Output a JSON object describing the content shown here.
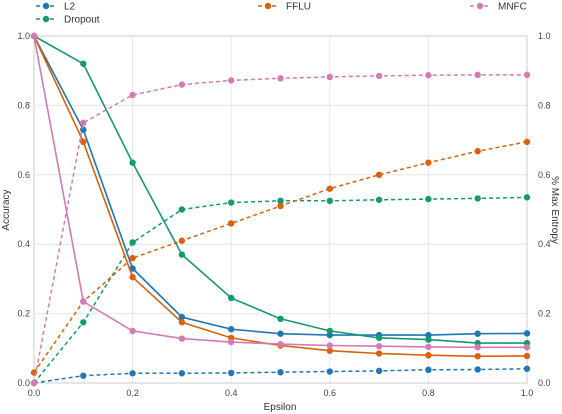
{
  "chart_data": {
    "type": "line",
    "xlabel": "Epsilon",
    "ylabel_left": "Accuracy",
    "ylabel_right": "% Max Entropy",
    "xlim": [
      0,
      1
    ],
    "ylim_left": [
      0,
      1
    ],
    "ylim_right": [
      0,
      1
    ],
    "grid": true,
    "legend_placement": "top",
    "x": [
      0.0,
      0.1,
      0.2,
      0.3,
      0.4,
      0.5,
      0.6,
      0.7,
      0.8,
      0.9,
      1.0
    ],
    "xticks": [
      "0.0",
      "0.2",
      "0.4",
      "0.6",
      "0.8",
      "1.0"
    ],
    "yticks": [
      "0.0",
      "0.2",
      "0.4",
      "0.6",
      "0.8",
      "1.0"
    ],
    "series": [
      {
        "name": "L2",
        "color": "#1f77b4",
        "accuracy": [
          1.0,
          0.73,
          0.33,
          0.19,
          0.155,
          0.142,
          0.138,
          0.138,
          0.138,
          0.142,
          0.143
        ],
        "entropy": [
          0.0,
          0.021,
          0.028,
          0.028,
          0.029,
          0.031,
          0.033,
          0.035,
          0.038,
          0.039,
          0.041
        ]
      },
      {
        "name": "Dropout",
        "color": "#129b6e",
        "accuracy": [
          1.0,
          0.92,
          0.635,
          0.37,
          0.245,
          0.185,
          0.15,
          0.13,
          0.125,
          0.115,
          0.115
        ],
        "entropy": [
          0.0,
          0.175,
          0.405,
          0.5,
          0.52,
          0.525,
          0.525,
          0.528,
          0.53,
          0.532,
          0.535
        ]
      },
      {
        "name": "FFLU",
        "color": "#d9620b",
        "accuracy": [
          1.0,
          0.695,
          0.305,
          0.175,
          0.13,
          0.108,
          0.093,
          0.085,
          0.08,
          0.077,
          0.078
        ],
        "entropy": [
          0.03,
          0.235,
          0.36,
          0.41,
          0.46,
          0.51,
          0.56,
          0.6,
          0.635,
          0.668,
          0.695
        ]
      },
      {
        "name": "MNFC",
        "color": "#d47ab4",
        "accuracy": [
          1.0,
          0.235,
          0.15,
          0.128,
          0.118,
          0.112,
          0.108,
          0.106,
          0.104,
          0.103,
          0.103
        ],
        "entropy": [
          0.0,
          0.75,
          0.83,
          0.86,
          0.872,
          0.878,
          0.882,
          0.885,
          0.887,
          0.888,
          0.888
        ]
      }
    ]
  }
}
